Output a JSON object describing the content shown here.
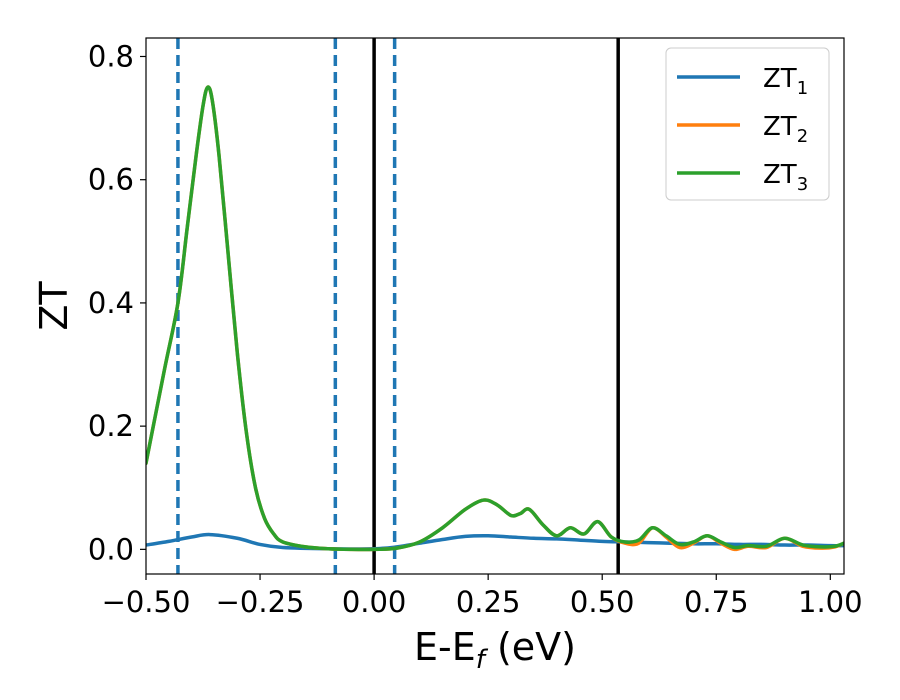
{
  "chart_data": {
    "type": "line",
    "xlabel": {
      "main": "E-E",
      "sub": "f",
      "suffix": " (eV)"
    },
    "ylabel": "ZT",
    "xlim": [
      -0.5,
      1.03
    ],
    "ylim": [
      -0.04,
      0.83
    ],
    "xticks": [
      -0.5,
      -0.25,
      0.0,
      0.25,
      0.5,
      0.75,
      1.0
    ],
    "xtick_labels": [
      "−0.50",
      "−0.25",
      "0.00",
      "0.25",
      "0.50",
      "0.75",
      "1.00"
    ],
    "yticks": [
      0.0,
      0.2,
      0.4,
      0.6,
      0.8
    ],
    "ytick_labels": [
      "0.0",
      "0.2",
      "0.4",
      "0.6",
      "0.8"
    ],
    "grid": false,
    "legend_position": "top-right",
    "vlines_dashed": {
      "x": [
        -0.43,
        -0.085,
        0.045
      ],
      "color": "#1f77b4"
    },
    "vlines_solid": {
      "x": [
        0.0,
        0.535
      ],
      "color": "#000000"
    },
    "series": [
      {
        "name": "ZT",
        "sub": "1",
        "color": "#1f77b4",
        "x": [
          -0.5,
          -0.45,
          -0.4,
          -0.36,
          -0.3,
          -0.25,
          -0.2,
          -0.1,
          0.0,
          0.05,
          0.1,
          0.15,
          0.2,
          0.25,
          0.3,
          0.35,
          0.4,
          0.45,
          0.5,
          0.55,
          0.6,
          0.65,
          0.7,
          0.75,
          0.8,
          0.85,
          0.9,
          0.95,
          1.0,
          1.03
        ],
        "y": [
          0.007,
          0.013,
          0.02,
          0.024,
          0.018,
          0.008,
          0.003,
          0.001,
          0.001,
          0.004,
          0.01,
          0.016,
          0.021,
          0.022,
          0.02,
          0.018,
          0.017,
          0.015,
          0.013,
          0.012,
          0.011,
          0.01,
          0.009,
          0.009,
          0.008,
          0.008,
          0.007,
          0.007,
          0.006,
          0.006
        ]
      },
      {
        "name": "ZT",
        "sub": "2",
        "color": "#ff7f0e",
        "x": [
          -0.5,
          -0.46,
          -0.43,
          -0.41,
          -0.39,
          -0.375,
          -0.365,
          -0.355,
          -0.34,
          -0.32,
          -0.3,
          -0.28,
          -0.26,
          -0.24,
          -0.22,
          -0.2,
          -0.15,
          -0.1,
          -0.05,
          0.0,
          0.05,
          0.1,
          0.15,
          0.2,
          0.24,
          0.27,
          0.3,
          0.32,
          0.34,
          0.37,
          0.4,
          0.43,
          0.46,
          0.49,
          0.52,
          0.55,
          0.58,
          0.61,
          0.64,
          0.67,
          0.7,
          0.73,
          0.76,
          0.79,
          0.82,
          0.86,
          0.9,
          0.94,
          0.98,
          1.01,
          1.03
        ],
        "y": [
          0.14,
          0.29,
          0.4,
          0.52,
          0.64,
          0.72,
          0.75,
          0.73,
          0.64,
          0.48,
          0.32,
          0.19,
          0.1,
          0.05,
          0.025,
          0.012,
          0.004,
          0.001,
          0.0,
          0.0,
          0.002,
          0.012,
          0.035,
          0.065,
          0.08,
          0.072,
          0.055,
          0.058,
          0.065,
          0.04,
          0.022,
          0.035,
          0.025,
          0.045,
          0.02,
          0.01,
          0.01,
          0.035,
          0.02,
          0.003,
          0.01,
          0.022,
          0.01,
          0.0,
          0.005,
          0.003,
          0.018,
          0.005,
          0.002,
          0.004,
          0.01
        ]
      },
      {
        "name": "ZT",
        "sub": "3",
        "color": "#2ca02c",
        "x": [
          -0.5,
          -0.46,
          -0.43,
          -0.41,
          -0.39,
          -0.375,
          -0.365,
          -0.355,
          -0.34,
          -0.32,
          -0.3,
          -0.28,
          -0.26,
          -0.24,
          -0.22,
          -0.2,
          -0.15,
          -0.1,
          -0.05,
          0.0,
          0.05,
          0.1,
          0.15,
          0.2,
          0.24,
          0.27,
          0.3,
          0.32,
          0.34,
          0.37,
          0.4,
          0.43,
          0.46,
          0.49,
          0.52,
          0.55,
          0.58,
          0.61,
          0.64,
          0.67,
          0.7,
          0.73,
          0.76,
          0.79,
          0.82,
          0.86,
          0.9,
          0.94,
          0.98,
          1.01,
          1.03
        ],
        "y": [
          0.14,
          0.29,
          0.4,
          0.52,
          0.64,
          0.72,
          0.75,
          0.73,
          0.64,
          0.48,
          0.32,
          0.19,
          0.1,
          0.05,
          0.025,
          0.012,
          0.004,
          0.001,
          0.0,
          0.0,
          0.002,
          0.012,
          0.035,
          0.065,
          0.08,
          0.072,
          0.055,
          0.058,
          0.065,
          0.04,
          0.022,
          0.035,
          0.025,
          0.045,
          0.02,
          0.012,
          0.015,
          0.035,
          0.022,
          0.008,
          0.012,
          0.022,
          0.012,
          0.003,
          0.006,
          0.005,
          0.018,
          0.007,
          0.004,
          0.005,
          0.01
        ]
      }
    ]
  }
}
